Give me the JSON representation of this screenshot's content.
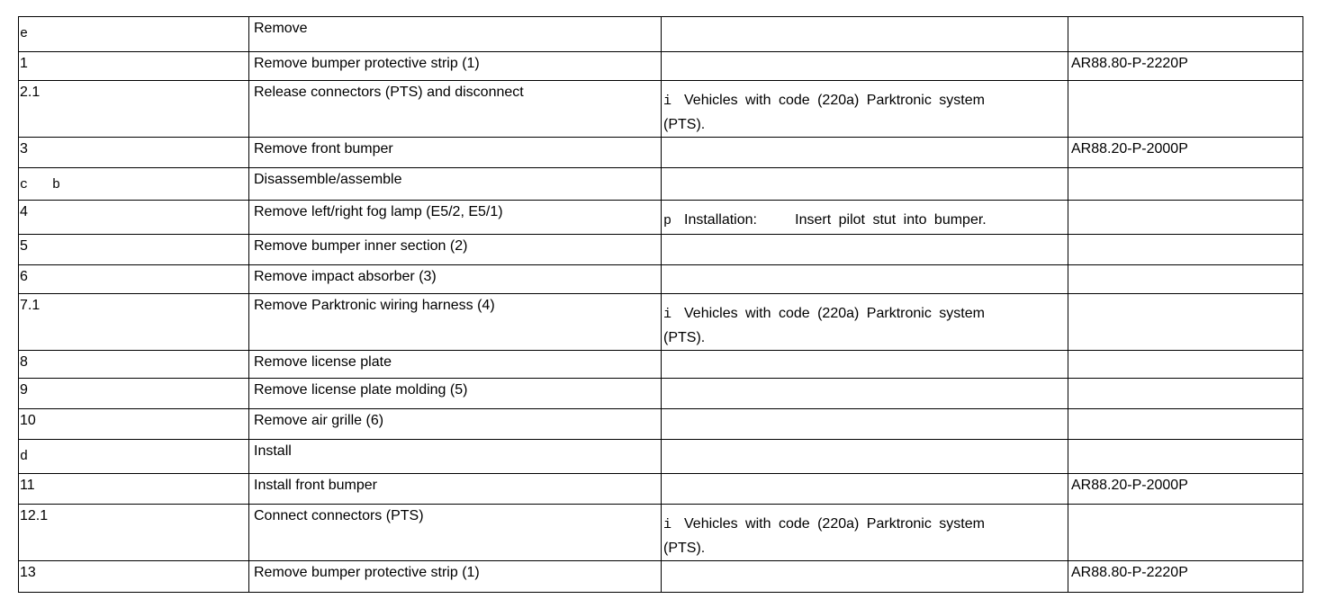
{
  "rows": [
    {
      "step": "e",
      "step_symbol": true,
      "action": "Remove",
      "note": "",
      "ref": ""
    },
    {
      "step": "1",
      "action": "Remove bumper protective strip (1)",
      "note": "",
      "ref": "AR88.80-P-2220P"
    },
    {
      "step": "2.1",
      "action": "Release connectors (PTS) and disconnect",
      "note_symbol": "i",
      "note": "Vehicles with code (220a) Parktronic system (PTS).",
      "ref": ""
    },
    {
      "step": "3",
      "action": "Remove front bumper",
      "note": "",
      "ref": "AR88.20-P-2000P"
    },
    {
      "step": "c   b",
      "step_symbol": true,
      "action": "Disassemble/assemble",
      "note": "",
      "ref": ""
    },
    {
      "step": "4",
      "action": "Remove left/right fog lamp (E5/2, E5/1)",
      "note_symbol": "p",
      "note": "Installation:     Insert pilot stut into bumper.",
      "ref": ""
    },
    {
      "step": "5",
      "action": "Remove bumper inner section (2)",
      "note": "",
      "ref": ""
    },
    {
      "step": "6",
      "action": "Remove impact absorber (3)",
      "note": "",
      "ref": ""
    },
    {
      "step": "7.1",
      "action": "Remove Parktronic wiring harness (4)",
      "note_symbol": "i",
      "note": "Vehicles with code (220a) Parktronic system (PTS).",
      "ref": ""
    },
    {
      "step": "8",
      "action": "Remove license plate",
      "note": "",
      "ref": ""
    },
    {
      "step": "9",
      "action": "Remove license plate molding (5)",
      "note": "",
      "ref": ""
    },
    {
      "step": "10",
      "action": "Remove air grille (6)",
      "note": "",
      "ref": ""
    },
    {
      "step": "d",
      "step_symbol": true,
      "action": "Install",
      "note": "",
      "ref": ""
    },
    {
      "step": "11",
      "action": "Install front bumper",
      "note": "",
      "ref": "AR88.20-P-2000P"
    },
    {
      "step": "12.1",
      "action": "Connect connectors (PTS)",
      "note_symbol": "i",
      "note": "Vehicles with code (220a) Parktronic system (PTS).",
      "ref": ""
    },
    {
      "step": "13",
      "action": "Remove bumper protective strip (1)",
      "note": "",
      "ref": "AR88.80-P-2220P"
    }
  ]
}
